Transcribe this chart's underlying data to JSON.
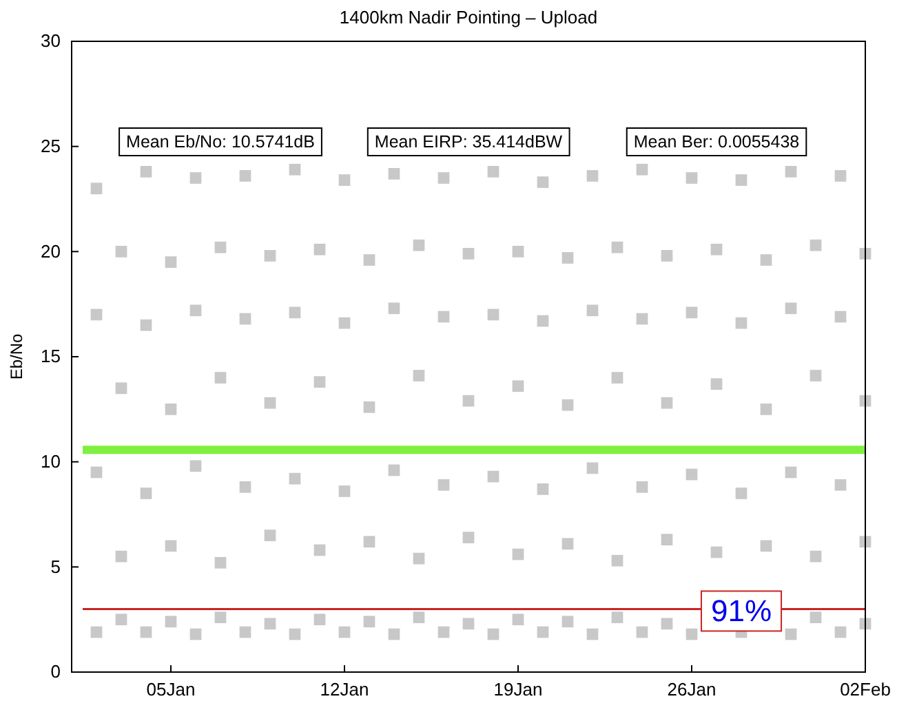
{
  "chart_data": {
    "type": "scatter",
    "title": "1400km Nadir Pointing – Upload",
    "ylabel": "Eb/No",
    "annotations": [
      "Mean Eb/No: 10.5741dB",
      "Mean EIRP: 35.414dBW",
      "Mean Ber: 0.0055438",
      {
        "text": "91%",
        "x": "--01-28",
        "y": 3
      }
    ],
    "xlim": [
      "--01-01",
      "--02-02"
    ],
    "xticks": [
      {
        "value": "--01-05",
        "label": "05Jan"
      },
      {
        "value": "--01-12",
        "label": "12Jan"
      },
      {
        "value": "--01-19",
        "label": "19Jan"
      },
      {
        "value": "--01-26",
        "label": "26Jan"
      },
      {
        "value": "--02-02",
        "label": "02Feb"
      }
    ],
    "ylim": [
      0,
      30
    ],
    "yticks": [
      0,
      5,
      10,
      15,
      20,
      25,
      30
    ],
    "marker": "square",
    "ref_lines": [
      {
        "axis": "y",
        "value": 10.5741,
        "color": "#80f040"
      },
      {
        "axis": "y",
        "value": 3,
        "color": "#cc2222"
      }
    ],
    "series": [
      {
        "color": "#c8c8c8",
        "x": [
          "--01-02",
          "--01-02",
          "--01-02",
          "--01-02",
          "--01-03",
          "--01-03",
          "--01-03",
          "--01-03",
          "--01-04",
          "--01-04",
          "--01-04",
          "--01-04",
          "--01-05",
          "--01-05",
          "--01-05",
          "--01-05",
          "--01-06",
          "--01-06",
          "--01-06",
          "--01-06",
          "--01-07",
          "--01-07",
          "--01-07",
          "--01-07",
          "--01-08",
          "--01-08",
          "--01-08",
          "--01-08",
          "--01-09",
          "--01-09",
          "--01-09",
          "--01-09",
          "--01-10",
          "--01-10",
          "--01-10",
          "--01-10",
          "--01-11",
          "--01-11",
          "--01-11",
          "--01-11",
          "--01-12",
          "--01-12",
          "--01-12",
          "--01-12",
          "--01-13",
          "--01-13",
          "--01-13",
          "--01-13",
          "--01-14",
          "--01-14",
          "--01-14",
          "--01-14",
          "--01-15",
          "--01-15",
          "--01-15",
          "--01-15",
          "--01-16",
          "--01-16",
          "--01-16",
          "--01-16",
          "--01-17",
          "--01-17",
          "--01-17",
          "--01-17",
          "--01-18",
          "--01-18",
          "--01-18",
          "--01-18",
          "--01-19",
          "--01-19",
          "--01-19",
          "--01-19",
          "--01-20",
          "--01-20",
          "--01-20",
          "--01-20",
          "--01-21",
          "--01-21",
          "--01-21",
          "--01-21",
          "--01-22",
          "--01-22",
          "--01-22",
          "--01-22",
          "--01-23",
          "--01-23",
          "--01-23",
          "--01-23",
          "--01-24",
          "--01-24",
          "--01-24",
          "--01-24",
          "--01-25",
          "--01-25",
          "--01-25",
          "--01-25",
          "--01-26",
          "--01-26",
          "--01-26",
          "--01-26",
          "--01-27",
          "--01-27",
          "--01-27",
          "--01-28",
          "--01-28",
          "--01-28",
          "--01-28",
          "--01-29",
          "--01-29",
          "--01-29",
          "--01-30",
          "--01-30",
          "--01-30",
          "--01-30",
          "--01-31",
          "--01-31",
          "--01-31",
          "--01-31",
          "--02-01",
          "--02-01",
          "--02-01",
          "--02-01",
          "--02-02",
          "--02-02",
          "--02-02",
          "--02-02"
        ],
        "values": [
          23.0,
          17.0,
          9.5,
          1.9,
          20.0,
          13.5,
          5.5,
          2.5,
          23.8,
          16.5,
          8.5,
          1.9,
          19.5,
          12.5,
          6.0,
          2.4,
          23.5,
          17.2,
          9.8,
          1.8,
          20.2,
          14.0,
          5.2,
          2.6,
          23.6,
          16.8,
          8.8,
          1.9,
          19.8,
          12.8,
          6.5,
          2.3,
          23.9,
          17.1,
          9.2,
          1.8,
          20.1,
          13.8,
          5.8,
          2.5,
          23.4,
          16.6,
          8.6,
          1.9,
          19.6,
          12.6,
          6.2,
          2.4,
          23.7,
          17.3,
          9.6,
          1.8,
          20.3,
          14.1,
          5.4,
          2.6,
          23.5,
          16.9,
          8.9,
          1.9,
          19.9,
          12.9,
          6.4,
          2.3,
          23.8,
          17.0,
          9.3,
          1.8,
          20.0,
          13.6,
          5.6,
          2.5,
          23.3,
          16.7,
          8.7,
          1.9,
          19.7,
          12.7,
          6.1,
          2.4,
          23.6,
          17.2,
          9.7,
          1.8,
          20.2,
          14.0,
          5.3,
          2.6,
          23.9,
          16.8,
          8.8,
          1.9,
          19.8,
          12.8,
          6.3,
          2.3,
          23.5,
          17.1,
          9.4,
          1.8,
          20.1,
          13.7,
          5.7,
          23.4,
          16.6,
          8.5,
          1.9,
          19.6,
          12.5,
          6.0,
          23.8,
          17.3,
          9.5,
          1.8,
          20.3,
          14.1,
          5.5,
          2.6,
          23.6,
          16.9,
          8.9,
          1.9,
          19.9,
          12.9,
          6.2,
          2.3
        ]
      }
    ]
  }
}
